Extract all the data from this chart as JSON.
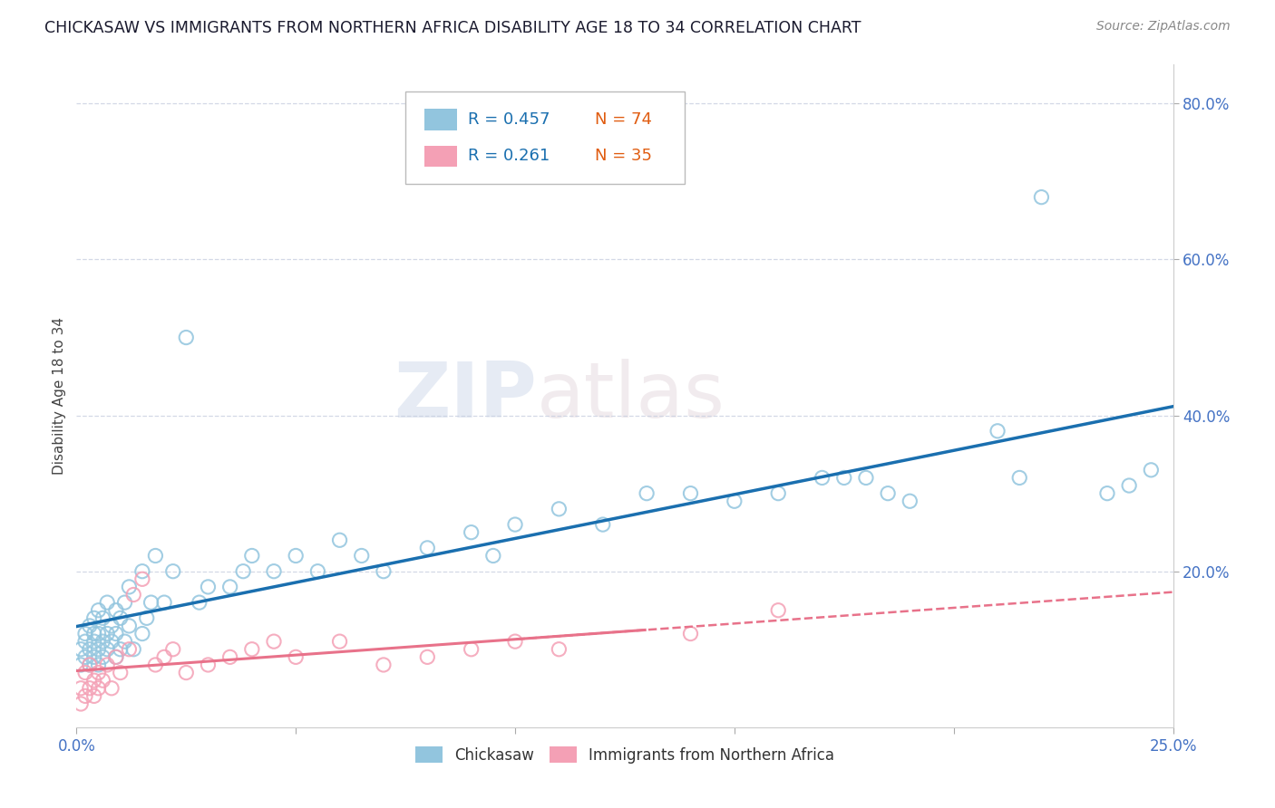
{
  "title": "CHICKASAW VS IMMIGRANTS FROM NORTHERN AFRICA DISABILITY AGE 18 TO 34 CORRELATION CHART",
  "source": "Source: ZipAtlas.com",
  "ylabel": "Disability Age 18 to 34",
  "xmin": 0.0,
  "xmax": 0.25,
  "ymin": 0.0,
  "ymax": 0.85,
  "legend_r1": "R = 0.457",
  "legend_n1": "N = 74",
  "legend_r2": "R = 0.261",
  "legend_n2": "N = 35",
  "color_blue": "#92c5de",
  "color_pink": "#f4a0b5",
  "line_blue": "#1a6faf",
  "line_pink": "#e8728a",
  "line_pink_dash": "#e8728a",
  "watermark_zip": "ZIP",
  "watermark_atlas": "atlas",
  "blue_scatter_x": [
    0.001,
    0.001,
    0.002,
    0.002,
    0.002,
    0.003,
    0.003,
    0.003,
    0.004,
    0.004,
    0.004,
    0.004,
    0.005,
    0.005,
    0.005,
    0.005,
    0.006,
    0.006,
    0.006,
    0.007,
    0.007,
    0.007,
    0.008,
    0.008,
    0.009,
    0.009,
    0.009,
    0.01,
    0.01,
    0.011,
    0.011,
    0.012,
    0.012,
    0.013,
    0.015,
    0.015,
    0.016,
    0.017,
    0.018,
    0.02,
    0.022,
    0.025,
    0.028,
    0.03,
    0.035,
    0.038,
    0.04,
    0.045,
    0.05,
    0.055,
    0.06,
    0.065,
    0.07,
    0.08,
    0.09,
    0.095,
    0.1,
    0.11,
    0.12,
    0.13,
    0.14,
    0.15,
    0.16,
    0.17,
    0.175,
    0.18,
    0.185,
    0.19,
    0.21,
    0.215,
    0.22,
    0.235,
    0.24,
    0.245
  ],
  "blue_scatter_y": [
    0.08,
    0.1,
    0.09,
    0.11,
    0.12,
    0.08,
    0.1,
    0.13,
    0.09,
    0.11,
    0.12,
    0.14,
    0.08,
    0.1,
    0.12,
    0.15,
    0.09,
    0.11,
    0.14,
    0.1,
    0.12,
    0.16,
    0.11,
    0.13,
    0.09,
    0.12,
    0.15,
    0.1,
    0.14,
    0.11,
    0.16,
    0.13,
    0.18,
    0.1,
    0.12,
    0.2,
    0.14,
    0.16,
    0.22,
    0.16,
    0.2,
    0.5,
    0.16,
    0.18,
    0.18,
    0.2,
    0.22,
    0.2,
    0.22,
    0.2,
    0.24,
    0.22,
    0.2,
    0.23,
    0.25,
    0.22,
    0.26,
    0.28,
    0.26,
    0.3,
    0.3,
    0.29,
    0.3,
    0.32,
    0.32,
    0.32,
    0.3,
    0.29,
    0.38,
    0.32,
    0.68,
    0.3,
    0.31,
    0.33
  ],
  "pink_scatter_x": [
    0.001,
    0.001,
    0.002,
    0.002,
    0.003,
    0.003,
    0.004,
    0.004,
    0.005,
    0.005,
    0.006,
    0.007,
    0.008,
    0.009,
    0.01,
    0.012,
    0.013,
    0.015,
    0.018,
    0.02,
    0.022,
    0.025,
    0.03,
    0.035,
    0.04,
    0.045,
    0.05,
    0.06,
    0.07,
    0.08,
    0.09,
    0.1,
    0.11,
    0.14,
    0.16
  ],
  "pink_scatter_y": [
    0.03,
    0.05,
    0.04,
    0.07,
    0.05,
    0.08,
    0.06,
    0.04,
    0.07,
    0.05,
    0.06,
    0.08,
    0.05,
    0.09,
    0.07,
    0.1,
    0.17,
    0.19,
    0.08,
    0.09,
    0.1,
    0.07,
    0.08,
    0.09,
    0.1,
    0.11,
    0.09,
    0.11,
    0.08,
    0.09,
    0.1,
    0.11,
    0.1,
    0.12,
    0.15
  ]
}
